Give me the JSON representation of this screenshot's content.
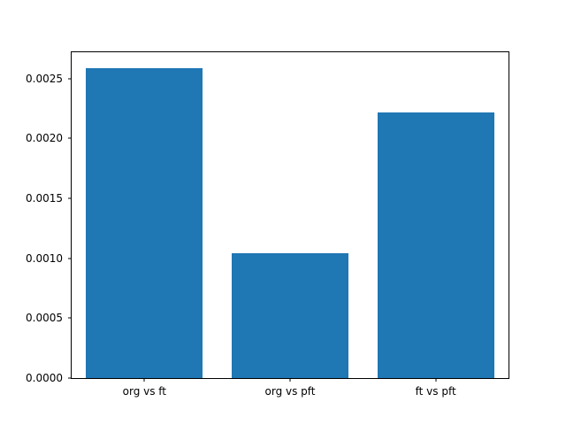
{
  "chart_data": {
    "type": "bar",
    "categories": [
      "org vs ft",
      "org vs pft",
      "ft vs pft"
    ],
    "values": [
      0.00259,
      0.00104,
      0.00222
    ],
    "title": "",
    "xlabel": "",
    "ylabel": "",
    "ylim": [
      0,
      0.00272
    ],
    "yticks": [
      0.0,
      0.0005,
      0.001,
      0.0015,
      0.002,
      0.0025
    ],
    "ytick_format_decimals": 4,
    "bar_color": "#1f77b4",
    "bar_width_fraction": 0.8,
    "grid": false,
    "legend": null
  }
}
